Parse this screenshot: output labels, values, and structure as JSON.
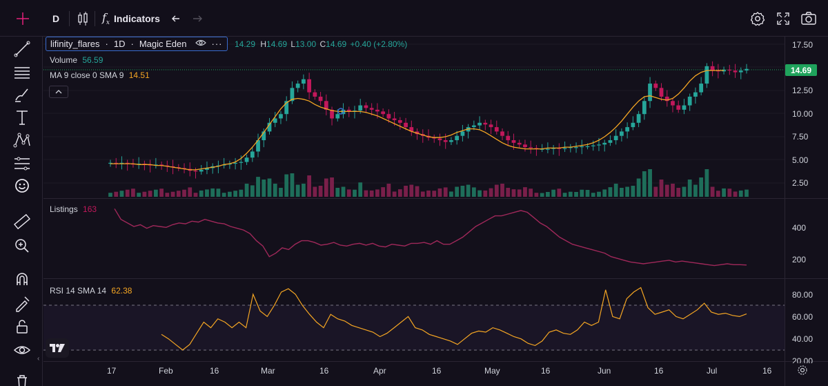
{
  "toolbar": {
    "interval": "D",
    "indicators_label": "Indicators"
  },
  "legend": {
    "symbol": "lifinity_flares",
    "timeframe": "1D",
    "exchange": "Magic Eden",
    "open": "14.29",
    "high_label": "H",
    "high": "14.69",
    "low_label": "L",
    "low": "13.00",
    "close_label": "C",
    "close": "14.69",
    "change": "+0.40 (+2.80%)",
    "volume_label": "Volume",
    "volume_value": "56.59",
    "ma_label": "MA 9 close 0 SMA 9",
    "ma_value": "14.51",
    "listings_label": "Listings",
    "listings_value": "163",
    "rsi_label": "RSI 14 SMA 14",
    "rsi_value": "62.38"
  },
  "price_axis": {
    "current_price": "14.69",
    "labels": [
      "17.50",
      "15.00",
      "12.50",
      "10.00",
      "7.50",
      "5.00",
      "2.50"
    ]
  },
  "listings_axis": {
    "labels": [
      "400",
      "200"
    ]
  },
  "rsi_axis": {
    "labels": [
      "80.00",
      "60.00",
      "40.00",
      "20.00"
    ]
  },
  "time_axis": {
    "labels": [
      "17",
      "Feb",
      "16",
      "Mar",
      "16",
      "Apr",
      "16",
      "May",
      "16",
      "Jun",
      "16",
      "Jul",
      "16"
    ]
  },
  "colors": {
    "up": "#26a69a",
    "down": "#c2185b",
    "ma": "#f5a623",
    "listings": "#a0285a",
    "rsi": "#f5a623",
    "accent": "#3a6ccf"
  },
  "chart_data": {
    "type": "candlestick",
    "panes": [
      {
        "name": "price",
        "ylim": [
          0,
          18
        ],
        "close_series": [
          3.9,
          3.8,
          3.9,
          3.8,
          3.7,
          3.8,
          3.7,
          3.6,
          3.7,
          3.6,
          3.5,
          3.4,
          3.3,
          3.2,
          3.0,
          2.9,
          3.1,
          3.3,
          3.5,
          3.6,
          3.7,
          3.8,
          3.9,
          4.0,
          4.5,
          5.2,
          6.5,
          7.5,
          8.5,
          9.0,
          9.5,
          11.0,
          12.5,
          13.0,
          13.5,
          12.0,
          11.5,
          11.0,
          10.0,
          9.0,
          9.5,
          10.0,
          9.8,
          9.9,
          10.5,
          10.2,
          10.0,
          9.8,
          9.5,
          9.0,
          8.8,
          8.5,
          8.0,
          7.5,
          7.2,
          7.0,
          6.8,
          6.7,
          6.5,
          6.3,
          6.5,
          7.0,
          7.5,
          8.0,
          8.2,
          8.5,
          8.3,
          8.0,
          7.5,
          7.0,
          6.5,
          6.2,
          6.0,
          5.7,
          5.6,
          5.5,
          5.5,
          5.5,
          5.6,
          5.5,
          5.6,
          5.7,
          5.7,
          5.8,
          5.8,
          5.9,
          6.0,
          6.2,
          6.5,
          7.0,
          7.5,
          8.0,
          8.5,
          9.5,
          11.0,
          13.0,
          12.5,
          11.5,
          11.0,
          10.5,
          10.0,
          10.5,
          11.5,
          12.0,
          13.0,
          15.0,
          14.5,
          14.4,
          14.6,
          14.5,
          14.3,
          14.5,
          14.69
        ],
        "ma_series": [
          3.8,
          3.8,
          3.8,
          3.8,
          3.8,
          3.7,
          3.7,
          3.7,
          3.6,
          3.6,
          3.5,
          3.4,
          3.3,
          3.2,
          3.1,
          3.1,
          3.2,
          3.3,
          3.4,
          3.5,
          3.7,
          3.8,
          4.0,
          4.4,
          5.0,
          5.7,
          6.5,
          7.4,
          8.3,
          9.2,
          10.1,
          10.8,
          11.2,
          11.3,
          11.2,
          11.0,
          10.6,
          10.3,
          10.1,
          9.9,
          9.8,
          9.8,
          9.8,
          9.8,
          9.8,
          9.7,
          9.5,
          9.3,
          9.0,
          8.7,
          8.4,
          8.1,
          7.8,
          7.5,
          7.3,
          7.1,
          6.9,
          6.8,
          6.8,
          6.9,
          7.1,
          7.4,
          7.6,
          7.8,
          7.8,
          7.7,
          7.4,
          7.0,
          6.6,
          6.2,
          5.9,
          5.7,
          5.6,
          5.5,
          5.5,
          5.5,
          5.5,
          5.6,
          5.6,
          5.6,
          5.7,
          5.7,
          5.8,
          5.9,
          6.0,
          6.2,
          6.5,
          6.9,
          7.4,
          8.0,
          8.7,
          9.5,
          10.3,
          11.0,
          11.5,
          11.6,
          11.4,
          11.2,
          11.1,
          11.3,
          11.8,
          12.5,
          13.3,
          13.9,
          14.3,
          14.5,
          14.5,
          14.51,
          14.51
        ]
      },
      {
        "name": "volume",
        "volume_value": 56.59
      },
      {
        "name": "Listings",
        "ylim": [
          100,
          520
        ],
        "values": [
          480,
          420,
          400,
          380,
          390,
          370,
          385,
          380,
          375,
          390,
          400,
          395,
          410,
          405,
          420,
          410,
          400,
          395,
          380,
          370,
          360,
          340,
          300,
          270,
          210,
          230,
          260,
          250,
          280,
          300,
          300,
          290,
          275,
          280,
          290,
          275,
          270,
          280,
          285,
          275,
          285,
          270,
          265,
          280,
          275,
          270,
          285,
          285,
          290,
          280,
          300,
          280,
          280,
          300,
          320,
          350,
          380,
          400,
          420,
          440,
          440,
          450,
          460,
          470,
          460,
          430,
          400,
          380,
          350,
          320,
          300,
          280,
          270,
          260,
          250,
          240,
          230,
          210,
          200,
          190,
          180,
          175,
          170,
          175,
          180,
          185,
          190,
          180,
          185,
          180,
          175,
          170,
          165,
          160,
          165,
          170,
          165,
          165,
          163
        ]
      },
      {
        "name": "RSI",
        "ylim": [
          20,
          90
        ],
        "bands": [
          70,
          30
        ],
        "values": [
          44,
          40,
          35,
          30,
          35,
          45,
          55,
          50,
          58,
          55,
          50,
          55,
          50,
          80,
          65,
          60,
          70,
          82,
          85,
          80,
          70,
          62,
          55,
          50,
          62,
          58,
          56,
          52,
          50,
          48,
          46,
          42,
          45,
          50,
          55,
          60,
          50,
          48,
          44,
          42,
          40,
          38,
          35,
          40,
          45,
          47,
          46,
          50,
          48,
          45,
          42,
          40,
          36,
          34,
          38,
          46,
          48,
          45,
          44,
          48,
          55,
          52,
          55,
          84,
          60,
          58,
          76,
          82,
          86,
          68,
          62,
          64,
          66,
          60,
          58,
          62,
          66,
          72,
          64,
          62,
          63,
          61,
          60,
          62.38
        ]
      }
    ]
  }
}
